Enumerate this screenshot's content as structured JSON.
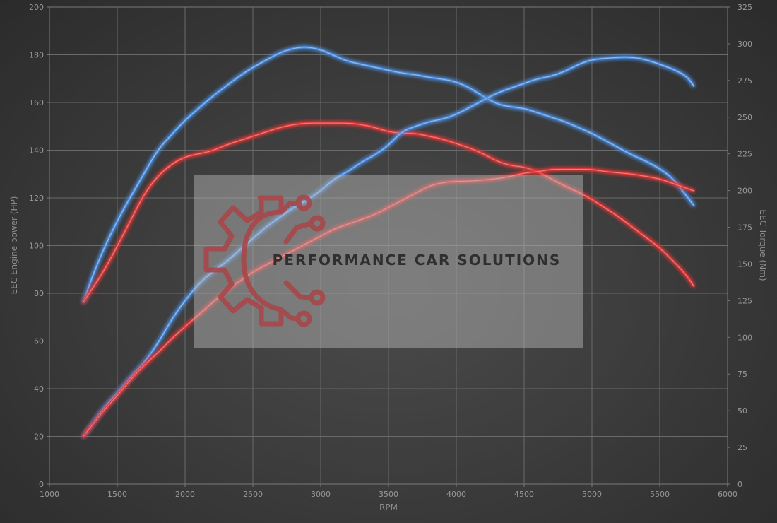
{
  "chart_data": {
    "type": "line",
    "xlabel": "RPM",
    "ylabel_left": "EEC Engine power (HP)",
    "ylabel_right": "EEC Torque (Nm)",
    "xlim": [
      1000,
      6000
    ],
    "x_ticks": [
      1000,
      1500,
      2000,
      2500,
      3000,
      3500,
      4000,
      4500,
      5000,
      5500,
      6000
    ],
    "ylim_left": [
      0,
      200
    ],
    "y_ticks_left": [
      0,
      20,
      40,
      60,
      80,
      100,
      120,
      140,
      160,
      180,
      200
    ],
    "ylim_right": [
      0,
      325
    ],
    "y_ticks_right": [
      0,
      25,
      50,
      75,
      100,
      125,
      150,
      175,
      200,
      225,
      250,
      275,
      300,
      325
    ],
    "grid": true,
    "series": [
      {
        "color": "#4f8fe0",
        "axis": "right",
        "points": [
          [
            1250,
            124
          ],
          [
            1350,
            150
          ],
          [
            1500,
            180
          ],
          [
            1700,
            212
          ],
          [
            1800,
            228
          ],
          [
            1900,
            238
          ],
          [
            2000,
            248
          ],
          [
            2100,
            256
          ],
          [
            2200,
            264
          ],
          [
            2300,
            271
          ],
          [
            2400,
            278
          ],
          [
            2500,
            284
          ],
          [
            2600,
            289
          ],
          [
            2700,
            294
          ],
          [
            2800,
            297
          ],
          [
            2900,
            298
          ],
          [
            3000,
            296
          ],
          [
            3100,
            292
          ],
          [
            3200,
            288
          ],
          [
            3300,
            286
          ],
          [
            3400,
            284
          ],
          [
            3500,
            282
          ],
          [
            3600,
            280
          ],
          [
            3700,
            279
          ],
          [
            3800,
            277
          ],
          [
            3900,
            276
          ],
          [
            4000,
            274
          ],
          [
            4100,
            270
          ],
          [
            4200,
            264
          ],
          [
            4300,
            259
          ],
          [
            4400,
            257
          ],
          [
            4500,
            256
          ],
          [
            4600,
            253
          ],
          [
            4700,
            250
          ],
          [
            4800,
            247
          ],
          [
            4900,
            243
          ],
          [
            5000,
            239
          ],
          [
            5100,
            234
          ],
          [
            5200,
            229
          ],
          [
            5300,
            224
          ],
          [
            5400,
            220
          ],
          [
            5500,
            215
          ],
          [
            5600,
            208
          ],
          [
            5700,
            196
          ],
          [
            5750,
            190
          ]
        ]
      },
      {
        "color": "#e03a3a",
        "axis": "right",
        "points": [
          [
            1250,
            124
          ],
          [
            1400,
            145
          ],
          [
            1500,
            162
          ],
          [
            1600,
            180
          ],
          [
            1700,
            198
          ],
          [
            1800,
            210
          ],
          [
            1900,
            218
          ],
          [
            2000,
            223
          ],
          [
            2100,
            225
          ],
          [
            2200,
            227
          ],
          [
            2300,
            231
          ],
          [
            2400,
            234
          ],
          [
            2500,
            237
          ],
          [
            2600,
            240
          ],
          [
            2700,
            243
          ],
          [
            2800,
            245
          ],
          [
            2900,
            246
          ],
          [
            3000,
            246
          ],
          [
            3100,
            246
          ],
          [
            3200,
            246
          ],
          [
            3300,
            245
          ],
          [
            3400,
            243
          ],
          [
            3500,
            240
          ],
          [
            3600,
            239
          ],
          [
            3700,
            239
          ],
          [
            3800,
            237
          ],
          [
            3900,
            235
          ],
          [
            4000,
            232
          ],
          [
            4100,
            229
          ],
          [
            4200,
            225
          ],
          [
            4300,
            220
          ],
          [
            4400,
            217
          ],
          [
            4500,
            216
          ],
          [
            4600,
            213
          ],
          [
            4700,
            208
          ],
          [
            4800,
            203
          ],
          [
            4900,
            199
          ],
          [
            5000,
            194
          ],
          [
            5100,
            188
          ],
          [
            5200,
            182
          ],
          [
            5300,
            175
          ],
          [
            5400,
            168
          ],
          [
            5500,
            161
          ],
          [
            5600,
            152
          ],
          [
            5700,
            142
          ],
          [
            5750,
            135
          ]
        ]
      },
      {
        "color": "#4f8fe0",
        "axis": "left",
        "points": [
          [
            1250,
            20
          ],
          [
            1400,
            32
          ],
          [
            1500,
            38
          ],
          [
            1600,
            45
          ],
          [
            1700,
            51
          ],
          [
            1800,
            59
          ],
          [
            1900,
            69
          ],
          [
            2000,
            77
          ],
          [
            2100,
            84
          ],
          [
            2200,
            89
          ],
          [
            2300,
            93
          ],
          [
            2400,
            98
          ],
          [
            2500,
            103
          ],
          [
            2600,
            108
          ],
          [
            2700,
            112
          ],
          [
            2800,
            116
          ],
          [
            2900,
            119
          ],
          [
            3000,
            123
          ],
          [
            3100,
            128
          ],
          [
            3200,
            131
          ],
          [
            3300,
            135
          ],
          [
            3400,
            138
          ],
          [
            3500,
            142
          ],
          [
            3600,
            148
          ],
          [
            3700,
            150
          ],
          [
            3800,
            152
          ],
          [
            3900,
            153
          ],
          [
            4000,
            155
          ],
          [
            4100,
            158
          ],
          [
            4200,
            161
          ],
          [
            4300,
            164
          ],
          [
            4400,
            166
          ],
          [
            4500,
            168
          ],
          [
            4600,
            170
          ],
          [
            4700,
            171
          ],
          [
            4800,
            173
          ],
          [
            4900,
            176
          ],
          [
            5000,
            178
          ],
          [
            5100,
            178.5
          ],
          [
            5200,
            179
          ],
          [
            5300,
            179
          ],
          [
            5400,
            178
          ],
          [
            5500,
            176
          ],
          [
            5600,
            174
          ],
          [
            5700,
            171
          ],
          [
            5750,
            167
          ]
        ]
      },
      {
        "color": "#e03a3a",
        "axis": "left",
        "points": [
          [
            1250,
            20
          ],
          [
            1400,
            31
          ],
          [
            1500,
            37
          ],
          [
            1600,
            44
          ],
          [
            1700,
            50
          ],
          [
            1800,
            55
          ],
          [
            1900,
            61
          ],
          [
            2000,
            66
          ],
          [
            2100,
            71
          ],
          [
            2200,
            76
          ],
          [
            2300,
            81
          ],
          [
            2400,
            85
          ],
          [
            2500,
            89
          ],
          [
            2600,
            92
          ],
          [
            2700,
            95
          ],
          [
            2800,
            98
          ],
          [
            2900,
            101
          ],
          [
            3000,
            104
          ],
          [
            3100,
            107
          ],
          [
            3200,
            109
          ],
          [
            3300,
            111
          ],
          [
            3400,
            113
          ],
          [
            3500,
            116
          ],
          [
            3600,
            119
          ],
          [
            3700,
            122
          ],
          [
            3800,
            125
          ],
          [
            3900,
            126.5
          ],
          [
            4000,
            127
          ],
          [
            4100,
            127
          ],
          [
            4200,
            127.5
          ],
          [
            4300,
            128
          ],
          [
            4400,
            129
          ],
          [
            4500,
            130.5
          ],
          [
            4600,
            131
          ],
          [
            4700,
            132
          ],
          [
            4800,
            132
          ],
          [
            4900,
            132
          ],
          [
            5000,
            132
          ],
          [
            5100,
            131
          ],
          [
            5200,
            130.5
          ],
          [
            5300,
            130
          ],
          [
            5400,
            129
          ],
          [
            5500,
            128
          ],
          [
            5600,
            126
          ],
          [
            5700,
            124
          ],
          [
            5750,
            123
          ]
        ]
      }
    ]
  },
  "watermark": {
    "text": "PERFORMANCE CAR SOLUTIONS"
  }
}
